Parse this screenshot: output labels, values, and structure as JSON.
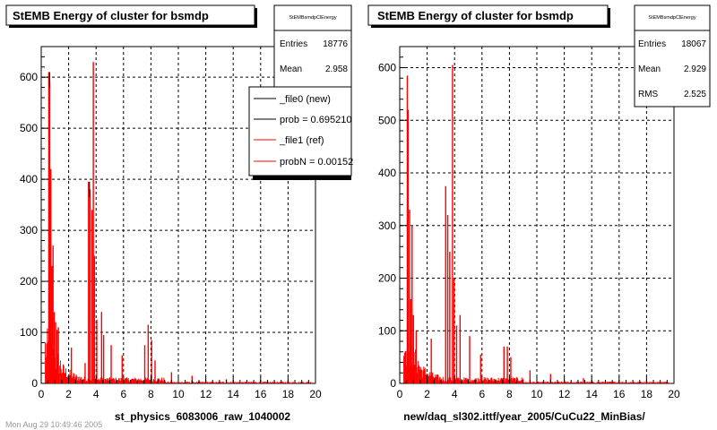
{
  "colors": {
    "hist_new": "#000000",
    "hist_ref": "#ff0000",
    "grid": "#000000",
    "frame": "#000000",
    "background": "#ffffff",
    "shadow": "#000000"
  },
  "footer_text": "Mon Aug 29 10:49:46 2005",
  "chart_data": [
    {
      "type": "bar",
      "title": "StEMB Energy of cluster for bsmdp",
      "xlabel": "st_physics_6083006_raw_1040002",
      "ylabel": "",
      "xlim": [
        0,
        20
      ],
      "ylim": [
        0,
        660
      ],
      "xticks": [
        "0",
        "2",
        "4",
        "6",
        "8",
        "10",
        "12",
        "14",
        "16",
        "18",
        "20"
      ],
      "yticks": [
        "0",
        "100",
        "200",
        "300",
        "400",
        "500",
        "600"
      ],
      "grid": true,
      "stats": {
        "title": "StEMBsmdpClEnergy",
        "rows": [
          {
            "label": "Entries",
            "value": "18776"
          },
          {
            "label": "Mean",
            "value": "2.958"
          }
        ]
      },
      "legend": {
        "position": "top-right",
        "entries": [
          "_file0 (new)",
          "prob = 0.695210",
          "_file1 (ref)",
          "probN = 0.00152"
        ]
      },
      "spikes": [
        {
          "x": 0.55,
          "y": 610
        },
        {
          "x": 0.62,
          "y": 590
        },
        {
          "x": 0.7,
          "y": 420
        },
        {
          "x": 0.78,
          "y": 230
        },
        {
          "x": 0.86,
          "y": 270
        },
        {
          "x": 0.95,
          "y": 140
        },
        {
          "x": 1.05,
          "y": 120
        },
        {
          "x": 1.15,
          "y": 105
        },
        {
          "x": 1.25,
          "y": 110
        },
        {
          "x": 2.2,
          "y": 70
        },
        {
          "x": 3.2,
          "y": 40
        },
        {
          "x": 3.45,
          "y": 395
        },
        {
          "x": 3.55,
          "y": 380
        },
        {
          "x": 3.7,
          "y": 340
        },
        {
          "x": 3.8,
          "y": 630
        },
        {
          "x": 3.88,
          "y": 250
        },
        {
          "x": 4.05,
          "y": 125
        },
        {
          "x": 4.4,
          "y": 140
        },
        {
          "x": 4.55,
          "y": 95
        },
        {
          "x": 5.1,
          "y": 75
        },
        {
          "x": 5.9,
          "y": 55
        },
        {
          "x": 7.55,
          "y": 75
        },
        {
          "x": 7.8,
          "y": 115
        },
        {
          "x": 8.05,
          "y": 85
        },
        {
          "x": 8.3,
          "y": 45
        },
        {
          "x": 9.5,
          "y": 22
        },
        {
          "x": 11,
          "y": 15
        },
        {
          "x": 13.5,
          "y": 8
        }
      ]
    },
    {
      "type": "bar",
      "title": "StEMB Energy of cluster for bsmdp",
      "xlabel": "new/daq_sl302.ittf/year_2005/CuCu22_MinBias/",
      "ylabel": "",
      "xlim": [
        0,
        20
      ],
      "ylim": [
        0,
        640
      ],
      "xticks": [
        "0",
        "2",
        "4",
        "6",
        "8",
        "10",
        "12",
        "14",
        "16",
        "18",
        "20"
      ],
      "yticks": [
        "0",
        "100",
        "200",
        "300",
        "400",
        "500",
        "600"
      ],
      "grid": true,
      "stats": {
        "title": "StEMBsmdpClEnergy",
        "rows": [
          {
            "label": "Entries",
            "value": "18067"
          },
          {
            "label": "Mean",
            "value": "2.929"
          },
          {
            "label": "RMS",
            "value": "2.525"
          }
        ]
      },
      "spikes": [
        {
          "x": 0.55,
          "y": 585
        },
        {
          "x": 0.62,
          "y": 520
        },
        {
          "x": 0.72,
          "y": 330
        },
        {
          "x": 0.8,
          "y": 160
        },
        {
          "x": 0.9,
          "y": 300
        },
        {
          "x": 1.0,
          "y": 130
        },
        {
          "x": 1.2,
          "y": 100
        },
        {
          "x": 2.3,
          "y": 85
        },
        {
          "x": 3.35,
          "y": 375
        },
        {
          "x": 3.5,
          "y": 320
        },
        {
          "x": 3.65,
          "y": 250
        },
        {
          "x": 3.85,
          "y": 605
        },
        {
          "x": 3.95,
          "y": 200
        },
        {
          "x": 4.15,
          "y": 110
        },
        {
          "x": 4.4,
          "y": 130
        },
        {
          "x": 5.1,
          "y": 90
        },
        {
          "x": 5.9,
          "y": 55
        },
        {
          "x": 7.6,
          "y": 70
        },
        {
          "x": 7.85,
          "y": 70
        },
        {
          "x": 8.1,
          "y": 50
        },
        {
          "x": 9.5,
          "y": 25
        },
        {
          "x": 11,
          "y": 18
        },
        {
          "x": 13.4,
          "y": 10
        }
      ]
    }
  ]
}
